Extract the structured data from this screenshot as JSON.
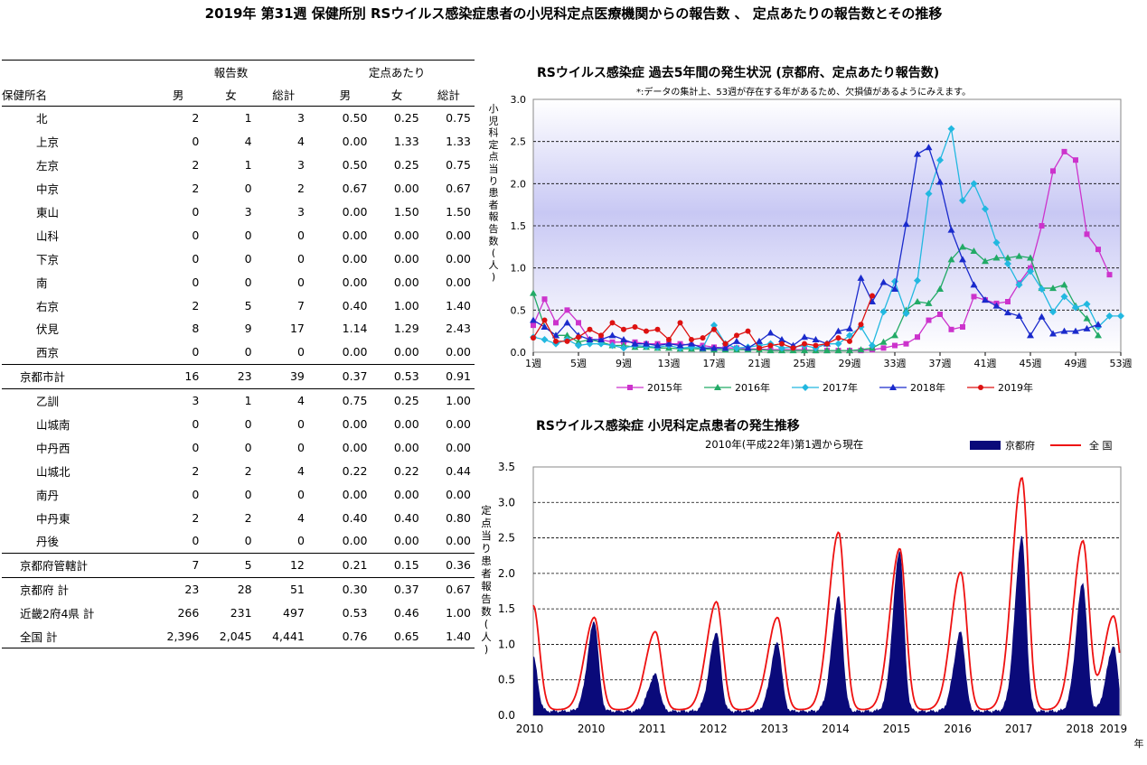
{
  "title": "2019年 第31週 保健所別 RSウイルス感染症患者の小児科定点医療機関からの報告数 、 定点あたりの報告数とその推移",
  "table": {
    "group_reports": "報告数",
    "group_rate": "定点あたり",
    "col_name": "保健所名",
    "col_male": "男",
    "col_female": "女",
    "col_total": "総計",
    "rows": [
      {
        "name": "北",
        "m": "2",
        "f": "1",
        "t": "3",
        "rm": "0.50",
        "rf": "0.25",
        "rt": "0.75",
        "style": "ind"
      },
      {
        "name": "上京",
        "m": "0",
        "f": "4",
        "t": "4",
        "rm": "0.00",
        "rf": "1.33",
        "rt": "1.33",
        "style": "ind"
      },
      {
        "name": "左京",
        "m": "2",
        "f": "1",
        "t": "3",
        "rm": "0.50",
        "rf": "0.25",
        "rt": "0.75",
        "style": "ind"
      },
      {
        "name": "中京",
        "m": "2",
        "f": "0",
        "t": "2",
        "rm": "0.67",
        "rf": "0.00",
        "rt": "0.67",
        "style": "ind"
      },
      {
        "name": "東山",
        "m": "0",
        "f": "3",
        "t": "3",
        "rm": "0.00",
        "rf": "1.50",
        "rt": "1.50",
        "style": "ind"
      },
      {
        "name": "山科",
        "m": "0",
        "f": "0",
        "t": "0",
        "rm": "0.00",
        "rf": "0.00",
        "rt": "0.00",
        "style": "ind"
      },
      {
        "name": "下京",
        "m": "0",
        "f": "0",
        "t": "0",
        "rm": "0.00",
        "rf": "0.00",
        "rt": "0.00",
        "style": "ind"
      },
      {
        "name": "南",
        "m": "0",
        "f": "0",
        "t": "0",
        "rm": "0.00",
        "rf": "0.00",
        "rt": "0.00",
        "style": "ind"
      },
      {
        "name": "右京",
        "m": "2",
        "f": "5",
        "t": "7",
        "rm": "0.40",
        "rf": "1.00",
        "rt": "1.40",
        "style": "ind"
      },
      {
        "name": "伏見",
        "m": "8",
        "f": "9",
        "t": "17",
        "rm": "1.14",
        "rf": "1.29",
        "rt": "2.43",
        "style": "ind"
      },
      {
        "name": "西京",
        "m": "0",
        "f": "0",
        "t": "0",
        "rm": "0.00",
        "rf": "0.00",
        "rt": "0.00",
        "style": "ind"
      },
      {
        "name": "京都市計",
        "m": "16",
        "f": "23",
        "t": "39",
        "rm": "0.37",
        "rf": "0.53",
        "rt": "0.91",
        "style": "sub",
        "sep": true
      },
      {
        "name": "乙訓",
        "m": "3",
        "f": "1",
        "t": "4",
        "rm": "0.75",
        "rf": "0.25",
        "rt": "1.00",
        "style": "ind",
        "sep": true
      },
      {
        "name": "山城南",
        "m": "0",
        "f": "0",
        "t": "0",
        "rm": "0.00",
        "rf": "0.00",
        "rt": "0.00",
        "style": "ind"
      },
      {
        "name": "中丹西",
        "m": "0",
        "f": "0",
        "t": "0",
        "rm": "0.00",
        "rf": "0.00",
        "rt": "0.00",
        "style": "ind"
      },
      {
        "name": "山城北",
        "m": "2",
        "f": "2",
        "t": "4",
        "rm": "0.22",
        "rf": "0.22",
        "rt": "0.44",
        "style": "ind"
      },
      {
        "name": "南丹",
        "m": "0",
        "f": "0",
        "t": "0",
        "rm": "0.00",
        "rf": "0.00",
        "rt": "0.00",
        "style": "ind"
      },
      {
        "name": "中丹東",
        "m": "2",
        "f": "2",
        "t": "4",
        "rm": "0.40",
        "rf": "0.40",
        "rt": "0.80",
        "style": "ind"
      },
      {
        "name": "丹後",
        "m": "0",
        "f": "0",
        "t": "0",
        "rm": "0.00",
        "rf": "0.00",
        "rt": "0.00",
        "style": "ind"
      },
      {
        "name": "京都府管轄計",
        "m": "7",
        "f": "5",
        "t": "12",
        "rm": "0.21",
        "rf": "0.15",
        "rt": "0.36",
        "style": "sub",
        "sep": true
      },
      {
        "name": "京都府 計",
        "m": "23",
        "f": "28",
        "t": "51",
        "rm": "0.30",
        "rf": "0.37",
        "rt": "0.67",
        "style": "sub",
        "sep": true
      },
      {
        "name": "近畿2府4県 計",
        "m": "266",
        "f": "231",
        "t": "497",
        "rm": "0.53",
        "rf": "0.46",
        "rt": "1.00",
        "style": "sub"
      },
      {
        "name": "全国 計",
        "m": "2,396",
        "f": "2,045",
        "t": "4,441",
        "rm": "0.76",
        "rf": "0.65",
        "rt": "1.40",
        "style": "sub",
        "last": true
      }
    ]
  },
  "chart_data": [
    {
      "type": "line",
      "title": "RSウイルス感染症 過去5年間の発生状況 (京都府、定点あたり報告数)",
      "note": "*:データの集計上、53週が存在する年があるため、欠損値があるようにみえます。",
      "ylabel": "小児科定点当り患者報告数(人)",
      "ylim": [
        0,
        3.0
      ],
      "yticks": [
        "0.0",
        "0.5",
        "1.0",
        "1.5",
        "2.0",
        "2.5",
        "3.0"
      ],
      "xlim": [
        1,
        53
      ],
      "xtick_values": [
        1,
        5,
        9,
        13,
        17,
        21,
        25,
        29,
        33,
        37,
        41,
        45,
        49,
        53
      ],
      "xtick_labels": [
        "1週",
        "5週",
        "9週",
        "13週",
        "17週",
        "21週",
        "25週",
        "29週",
        "33週",
        "37週",
        "41週",
        "45週",
        "49週",
        "53週"
      ],
      "legend_position": "bottom",
      "series": [
        {
          "name": "2015年",
          "color": "#cc33cc",
          "marker": "square",
          "values": [
            0.32,
            0.63,
            0.35,
            0.5,
            0.35,
            0.15,
            0.15,
            0.12,
            0.12,
            0.12,
            0.1,
            0.1,
            0.1,
            0.1,
            0.08,
            0.08,
            0.06,
            0.05,
            0.05,
            0.04,
            0.04,
            0.03,
            0.03,
            0.03,
            0.03,
            0.02,
            0.02,
            0.02,
            0.02,
            0.02,
            0.03,
            0.05,
            0.08,
            0.1,
            0.18,
            0.38,
            0.45,
            0.27,
            0.3,
            0.66,
            0.62,
            0.58,
            0.6,
            0.82,
            1.0,
            1.5,
            2.15,
            2.38,
            2.28,
            1.4,
            1.22,
            0.92
          ]
        },
        {
          "name": "2016年",
          "color": "#22aa66",
          "marker": "triangle",
          "values": [
            0.7,
            0.3,
            0.2,
            0.2,
            0.12,
            0.15,
            0.12,
            0.08,
            0.08,
            0.06,
            0.06,
            0.05,
            0.05,
            0.04,
            0.04,
            0.04,
            0.03,
            0.03,
            0.03,
            0.03,
            0.03,
            0.02,
            0.02,
            0.02,
            0.02,
            0.02,
            0.02,
            0.02,
            0.02,
            0.03,
            0.05,
            0.12,
            0.2,
            0.5,
            0.6,
            0.58,
            0.75,
            1.1,
            1.25,
            1.2,
            1.08,
            1.12,
            1.12,
            1.14,
            1.12,
            0.76,
            0.76,
            0.8,
            0.55,
            0.4,
            0.2
          ]
        },
        {
          "name": "2017年",
          "color": "#22b8e0",
          "marker": "diamond",
          "values": [
            0.18,
            0.15,
            0.1,
            0.15,
            0.08,
            0.1,
            0.1,
            0.08,
            0.05,
            0.08,
            0.07,
            0.06,
            0.08,
            0.05,
            0.06,
            0.05,
            0.32,
            0.1,
            0.05,
            0.06,
            0.08,
            0.1,
            0.05,
            0.06,
            0.08,
            0.05,
            0.1,
            0.1,
            0.2,
            0.3,
            0.08,
            0.48,
            0.84,
            0.46,
            0.85,
            1.88,
            2.28,
            2.65,
            1.8,
            2.0,
            1.7,
            1.3,
            1.05,
            0.8,
            0.96,
            0.75,
            0.48,
            0.66,
            0.53,
            0.57,
            0.3,
            0.43,
            0.43
          ]
        },
        {
          "name": "2018年",
          "color": "#1a2acc",
          "marker": "triangle",
          "values": [
            0.38,
            0.3,
            0.2,
            0.35,
            0.2,
            0.15,
            0.15,
            0.2,
            0.15,
            0.1,
            0.1,
            0.08,
            0.1,
            0.08,
            0.1,
            0.05,
            0.05,
            0.05,
            0.13,
            0.05,
            0.13,
            0.23,
            0.15,
            0.08,
            0.18,
            0.15,
            0.1,
            0.25,
            0.28,
            0.88,
            0.6,
            0.83,
            0.75,
            1.52,
            2.35,
            2.43,
            2.02,
            1.45,
            1.1,
            0.8,
            0.62,
            0.55,
            0.47,
            0.43,
            0.2,
            0.42,
            0.22,
            0.25,
            0.25,
            0.28,
            0.33
          ]
        },
        {
          "name": "2019年",
          "color": "#dd1111",
          "marker": "circle",
          "values": [
            0.17,
            0.38,
            0.13,
            0.13,
            0.18,
            0.27,
            0.2,
            0.35,
            0.27,
            0.3,
            0.25,
            0.27,
            0.15,
            0.35,
            0.15,
            0.17,
            0.27,
            0.1,
            0.2,
            0.25,
            0.05,
            0.08,
            0.1,
            0.05,
            0.1,
            0.08,
            0.1,
            0.17,
            0.13,
            0.33,
            0.67
          ]
        }
      ]
    },
    {
      "type": "area",
      "title": "RSウイルス感染症 小児科定点患者の発生推移",
      "subtitle": "2010年(平成22年)第1週から現在",
      "ylabel": "定点当り患者報告数(人)",
      "xlabel": "年",
      "ylim": [
        0,
        3.5
      ],
      "yticks": [
        "0.0",
        "0.5",
        "1.0",
        "1.5",
        "2.0",
        "2.5",
        "3.0",
        "3.5"
      ],
      "xtick_labels": [
        "2010",
        "2010",
        "2011",
        "2012",
        "2013",
        "2014",
        "2015",
        "2016",
        "2017",
        "2018",
        "2019"
      ],
      "legend_position": "top-right",
      "series_kyoto": {
        "name": "京都府",
        "color": "#0a0a7a",
        "peaks": [
          [
            0.0,
            0.8
          ],
          [
            1.0,
            1.3
          ],
          [
            2.0,
            0.55
          ],
          [
            3.0,
            1.15
          ],
          [
            4.0,
            1.0
          ],
          [
            5.0,
            1.65
          ],
          [
            6.0,
            2.3
          ],
          [
            7.0,
            1.15
          ],
          [
            8.0,
            2.5
          ],
          [
            9.0,
            1.85
          ],
          [
            9.5,
            0.95
          ]
        ]
      },
      "series_national": {
        "name": "全 国",
        "color": "#ee1111",
        "peaks": [
          [
            0.0,
            1.55
          ],
          [
            1.0,
            1.38
          ],
          [
            2.0,
            1.18
          ],
          [
            3.0,
            1.6
          ],
          [
            4.0,
            1.38
          ],
          [
            5.0,
            2.58
          ],
          [
            6.0,
            2.35
          ],
          [
            7.0,
            2.02
          ],
          [
            8.0,
            3.35
          ],
          [
            9.0,
            2.45
          ],
          [
            9.5,
            1.4
          ]
        ]
      }
    }
  ]
}
